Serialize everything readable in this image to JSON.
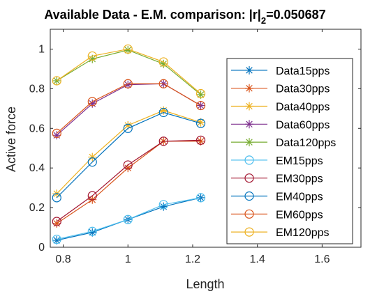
{
  "chart_data": {
    "type": "line",
    "title": "Available Data - E.M. comparison: |r|",
    "title_subscript": "2",
    "title_suffix": "=0.050687",
    "xlabel": "Length",
    "ylabel": "Active force",
    "xlim": [
      0.76,
      1.72
    ],
    "ylim": [
      0,
      1.1
    ],
    "xticks": [
      0.8,
      1,
      1.2,
      1.4,
      1.6
    ],
    "xtick_labels": [
      "0.8",
      "1",
      "1.2",
      "1.4",
      "1.6"
    ],
    "yticks": [
      0,
      0.2,
      0.4,
      0.6,
      0.8,
      1
    ],
    "ytick_labels": [
      "0",
      "0.2",
      "0.4",
      "0.6",
      "0.8",
      "1"
    ],
    "grid": false,
    "legend_position": "right",
    "x": [
      0.78,
      0.89,
      1.0,
      1.11,
      1.225
    ],
    "series": [
      {
        "name": "Data15pps",
        "marker": "star",
        "color": "#0072BD",
        "values": [
          0.035,
          0.075,
          0.14,
          0.205,
          0.25
        ]
      },
      {
        "name": "Data30pps",
        "marker": "star",
        "color": "#D95319",
        "values": [
          0.12,
          0.24,
          0.4,
          0.535,
          0.535
        ]
      },
      {
        "name": "Data40pps",
        "marker": "star",
        "color": "#EDB120",
        "values": [
          0.27,
          0.455,
          0.615,
          0.69,
          0.63
        ]
      },
      {
        "name": "Data60pps",
        "marker": "star",
        "color": "#7E2F8E",
        "values": [
          0.565,
          0.725,
          0.82,
          0.825,
          0.715
        ]
      },
      {
        "name": "Data120pps",
        "marker": "star",
        "color": "#77AC30",
        "values": [
          0.84,
          0.95,
          0.995,
          0.925,
          0.77
        ]
      },
      {
        "name": "EM15pps",
        "marker": "circle",
        "color": "#4DBEEE",
        "values": [
          0.04,
          0.08,
          0.14,
          0.215,
          0.25
        ]
      },
      {
        "name": "EM30pps",
        "marker": "circle",
        "color": "#A2142F",
        "values": [
          0.13,
          0.26,
          0.415,
          0.535,
          0.54
        ]
      },
      {
        "name": "EM40pps",
        "marker": "circle",
        "color": "#0072BD",
        "values": [
          0.25,
          0.43,
          0.6,
          0.68,
          0.625
        ]
      },
      {
        "name": "EM60pps",
        "marker": "circle",
        "color": "#D95319",
        "values": [
          0.575,
          0.735,
          0.825,
          0.825,
          0.715
        ]
      },
      {
        "name": "EM120pps",
        "marker": "circle",
        "color": "#EDB120",
        "values": [
          0.84,
          0.965,
          1.0,
          0.935,
          0.775
        ]
      }
    ]
  }
}
